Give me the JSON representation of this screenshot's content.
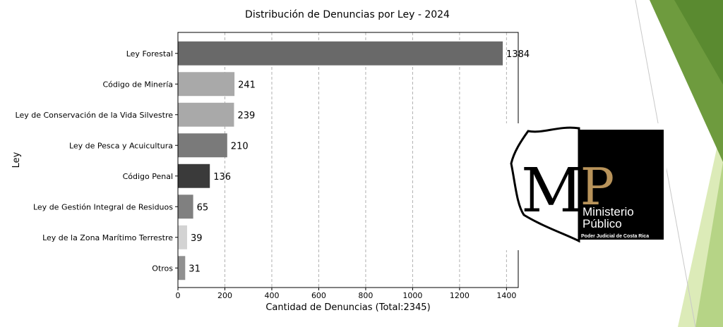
{
  "chart_data": {
    "type": "bar",
    "orientation": "horizontal",
    "title": "Distribución de Denuncias por Ley - 2024",
    "xlabel": "Cantidad de Denuncias (Total:2345)",
    "ylabel": "Ley",
    "categories": [
      "Ley Forestal",
      "Código de Minería",
      "Ley de Conservación de la Vida Silvestre",
      "Ley de Pesca y Acuicultura",
      "Código Penal",
      "Ley de Gestión Integral de Residuos",
      "Ley de la Zona Marítimo Terrestre",
      "Otros"
    ],
    "values": [
      1384,
      241,
      239,
      210,
      136,
      65,
      39,
      31
    ],
    "bar_colors": [
      "#696969",
      "#a9a9a9",
      "#a9a9a9",
      "#7a7a7a",
      "#3a3a3a",
      "#808080",
      "#d3d3d3",
      "#909090"
    ],
    "xlim": [
      0,
      1450
    ],
    "xticks": [
      0,
      200,
      400,
      600,
      800,
      1000,
      1200,
      1400
    ],
    "grid": "x-dashed"
  },
  "logo": {
    "monogram_m": "M",
    "monogram_p": "P",
    "name_line1": "Ministerio",
    "name_line2": "Público",
    "tagline": "Poder Judicial de Costa Rica",
    "gold": "#b8935a"
  },
  "colors": {
    "green_dark": "#6a9a3a",
    "green_light": "#c9dfa0"
  }
}
